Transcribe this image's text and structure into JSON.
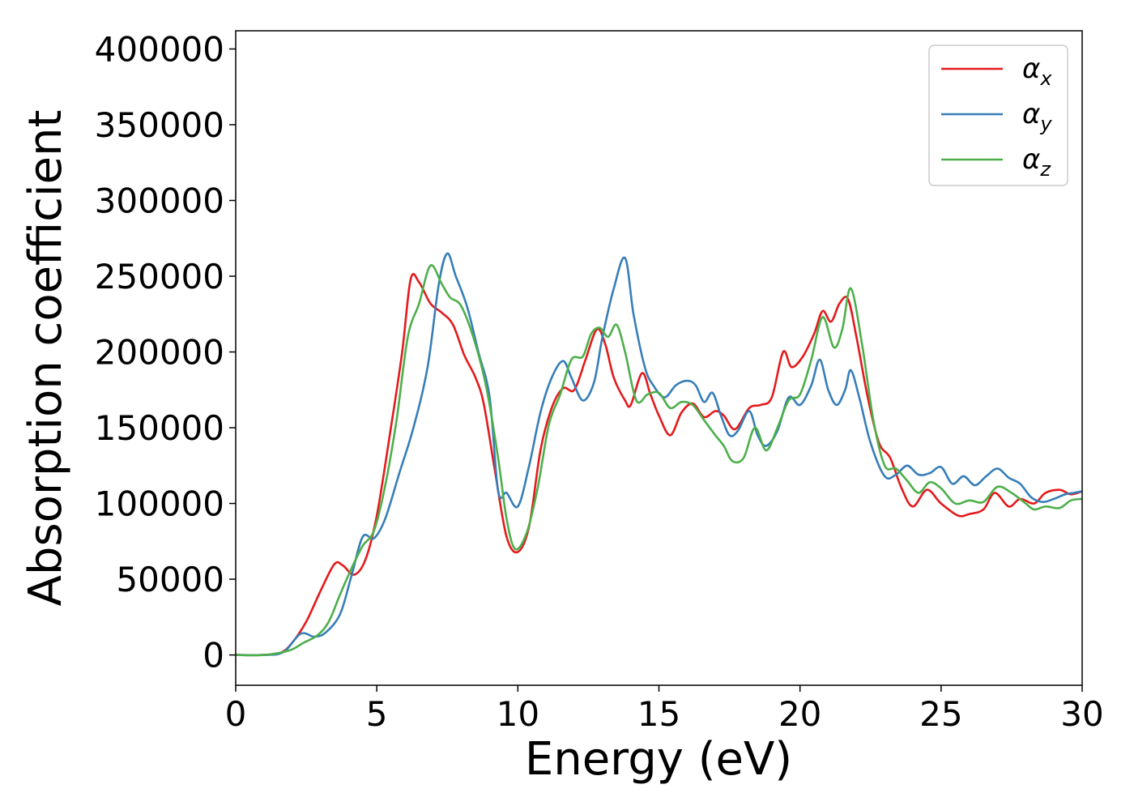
{
  "chart_data": {
    "type": "line",
    "xlabel": "Energy (eV)",
    "ylabel": "Absorption coefficient",
    "xlim": [
      0,
      30
    ],
    "ylim": [
      -20000,
      412000
    ],
    "xticks": [
      0,
      5,
      10,
      15,
      20,
      25,
      30
    ],
    "yticks": [
      0,
      50000,
      100000,
      150000,
      200000,
      250000,
      300000,
      350000,
      400000
    ],
    "xtick_labels": [
      "0",
      "5",
      "10",
      "15",
      "20",
      "25",
      "30"
    ],
    "ytick_labels": [
      "0",
      "50000",
      "100000",
      "150000",
      "200000",
      "250000",
      "300000",
      "350000",
      "400000"
    ],
    "grid": false,
    "legend": "top-right",
    "series": [
      {
        "name": "α",
        "subscript": "x",
        "color": "#e41a1c",
        "points": [
          [
            0,
            0
          ],
          [
            1,
            0
          ],
          [
            1.6,
            1500
          ],
          [
            2,
            8000
          ],
          [
            2.5,
            22000
          ],
          [
            3,
            42000
          ],
          [
            3.5,
            60000
          ],
          [
            3.8,
            59000
          ],
          [
            4.2,
            53000
          ],
          [
            4.6,
            63000
          ],
          [
            5,
            92000
          ],
          [
            5.5,
            150000
          ],
          [
            5.9,
            200000
          ],
          [
            6.2,
            248000
          ],
          [
            6.5,
            246000
          ],
          [
            6.9,
            232000
          ],
          [
            7.3,
            226000
          ],
          [
            7.7,
            218000
          ],
          [
            8.1,
            198000
          ],
          [
            8.5,
            183000
          ],
          [
            8.8,
            165000
          ],
          [
            9.2,
            120000
          ],
          [
            9.6,
            78000
          ],
          [
            10,
            68000
          ],
          [
            10.4,
            85000
          ],
          [
            10.8,
            135000
          ],
          [
            11.2,
            163000
          ],
          [
            11.6,
            176000
          ],
          [
            12,
            175000
          ],
          [
            12.4,
            195000
          ],
          [
            12.8,
            215000
          ],
          [
            13.1,
            205000
          ],
          [
            13.4,
            183000
          ],
          [
            13.8,
            168000
          ],
          [
            14,
            165000
          ],
          [
            14.4,
            186000
          ],
          [
            14.7,
            172000
          ],
          [
            15,
            158000
          ],
          [
            15.4,
            145000
          ],
          [
            15.8,
            160000
          ],
          [
            16.2,
            166000
          ],
          [
            16.6,
            157000
          ],
          [
            17,
            161000
          ],
          [
            17.3,
            158000
          ],
          [
            17.7,
            149000
          ],
          [
            18.2,
            163000
          ],
          [
            18.6,
            165000
          ],
          [
            19,
            170000
          ],
          [
            19.4,
            200000
          ],
          [
            19.7,
            190000
          ],
          [
            20.1,
            197000
          ],
          [
            20.5,
            212000
          ],
          [
            20.8,
            227000
          ],
          [
            21.1,
            220000
          ],
          [
            21.4,
            232000
          ],
          [
            21.7,
            235000
          ],
          [
            22,
            210000
          ],
          [
            22.4,
            170000
          ],
          [
            22.8,
            140000
          ],
          [
            23.2,
            130000
          ],
          [
            23.6,
            110000
          ],
          [
            24,
            98000
          ],
          [
            24.5,
            109000
          ],
          [
            25,
            100000
          ],
          [
            25.6,
            92000
          ],
          [
            26,
            93000
          ],
          [
            26.5,
            96000
          ],
          [
            26.9,
            107000
          ],
          [
            27.4,
            98000
          ],
          [
            27.8,
            103000
          ],
          [
            28.3,
            100000
          ],
          [
            28.7,
            107000
          ],
          [
            29.2,
            109000
          ],
          [
            29.6,
            106000
          ],
          [
            30,
            108000
          ]
        ]
      },
      {
        "name": "α",
        "subscript": "y",
        "color": "#377eb8",
        "points": [
          [
            0,
            0
          ],
          [
            1,
            0
          ],
          [
            1.7,
            2000
          ],
          [
            2.3,
            14000
          ],
          [
            2.8,
            12000
          ],
          [
            3.2,
            15000
          ],
          [
            3.7,
            27000
          ],
          [
            4.1,
            52000
          ],
          [
            4.5,
            78000
          ],
          [
            4.9,
            77000
          ],
          [
            5.3,
            90000
          ],
          [
            5.8,
            120000
          ],
          [
            6.3,
            150000
          ],
          [
            6.8,
            190000
          ],
          [
            7.2,
            245000
          ],
          [
            7.5,
            265000
          ],
          [
            7.8,
            250000
          ],
          [
            8.2,
            230000
          ],
          [
            8.6,
            200000
          ],
          [
            9,
            170000
          ],
          [
            9.3,
            108000
          ],
          [
            9.6,
            107000
          ],
          [
            10,
            98000
          ],
          [
            10.4,
            125000
          ],
          [
            10.8,
            160000
          ],
          [
            11.2,
            183000
          ],
          [
            11.6,
            194000
          ],
          [
            11.9,
            183000
          ],
          [
            12.3,
            168000
          ],
          [
            12.7,
            180000
          ],
          [
            13,
            210000
          ],
          [
            13.4,
            242000
          ],
          [
            13.8,
            262000
          ],
          [
            14.1,
            225000
          ],
          [
            14.5,
            190000
          ],
          [
            14.8,
            178000
          ],
          [
            15.2,
            170000
          ],
          [
            15.6,
            178000
          ],
          [
            16,
            181000
          ],
          [
            16.3,
            178000
          ],
          [
            16.6,
            167000
          ],
          [
            16.9,
            173000
          ],
          [
            17.2,
            158000
          ],
          [
            17.5,
            145000
          ],
          [
            17.8,
            148000
          ],
          [
            18.2,
            161000
          ],
          [
            18.5,
            145000
          ],
          [
            18.8,
            138000
          ],
          [
            19.2,
            148000
          ],
          [
            19.6,
            170000
          ],
          [
            20,
            165000
          ],
          [
            20.4,
            178000
          ],
          [
            20.7,
            195000
          ],
          [
            21,
            175000
          ],
          [
            21.3,
            165000
          ],
          [
            21.6,
            175000
          ],
          [
            21.8,
            188000
          ],
          [
            22.1,
            170000
          ],
          [
            22.5,
            140000
          ],
          [
            23,
            118000
          ],
          [
            23.4,
            119000
          ],
          [
            23.8,
            125000
          ],
          [
            24.2,
            119000
          ],
          [
            24.6,
            120000
          ],
          [
            25,
            124000
          ],
          [
            25.4,
            113000
          ],
          [
            25.8,
            118000
          ],
          [
            26.2,
            112000
          ],
          [
            26.6,
            118000
          ],
          [
            27,
            123000
          ],
          [
            27.4,
            117000
          ],
          [
            27.8,
            113000
          ],
          [
            28.2,
            104000
          ],
          [
            28.6,
            101000
          ],
          [
            29,
            103000
          ],
          [
            29.4,
            106000
          ],
          [
            29.7,
            107000
          ],
          [
            30,
            108000
          ]
        ]
      },
      {
        "name": "α",
        "subscript": "z",
        "color": "#4daf4a",
        "points": [
          [
            0,
            0
          ],
          [
            1,
            0
          ],
          [
            1.9,
            3000
          ],
          [
            2.4,
            8000
          ],
          [
            2.9,
            13000
          ],
          [
            3.3,
            22000
          ],
          [
            3.7,
            40000
          ],
          [
            4.1,
            57000
          ],
          [
            4.5,
            72000
          ],
          [
            4.9,
            82000
          ],
          [
            5.3,
            112000
          ],
          [
            5.7,
            155000
          ],
          [
            6.1,
            210000
          ],
          [
            6.5,
            232000
          ],
          [
            6.9,
            257000
          ],
          [
            7.3,
            245000
          ],
          [
            7.6,
            236000
          ],
          [
            8,
            230000
          ],
          [
            8.5,
            205000
          ],
          [
            8.9,
            175000
          ],
          [
            9.3,
            130000
          ],
          [
            9.6,
            90000
          ],
          [
            9.9,
            70000
          ],
          [
            10.3,
            80000
          ],
          [
            10.7,
            110000
          ],
          [
            11.1,
            152000
          ],
          [
            11.5,
            172000
          ],
          [
            11.9,
            195000
          ],
          [
            12.3,
            197000
          ],
          [
            12.6,
            212000
          ],
          [
            12.9,
            216000
          ],
          [
            13.2,
            210000
          ],
          [
            13.5,
            218000
          ],
          [
            13.8,
            200000
          ],
          [
            14.2,
            168000
          ],
          [
            14.6,
            172000
          ],
          [
            15,
            173000
          ],
          [
            15.4,
            163000
          ],
          [
            15.8,
            167000
          ],
          [
            16.2,
            165000
          ],
          [
            16.6,
            155000
          ],
          [
            17,
            145000
          ],
          [
            17.3,
            138000
          ],
          [
            17.6,
            128000
          ],
          [
            18,
            130000
          ],
          [
            18.4,
            150000
          ],
          [
            18.8,
            135000
          ],
          [
            19.2,
            150000
          ],
          [
            19.6,
            168000
          ],
          [
            20,
            172000
          ],
          [
            20.4,
            195000
          ],
          [
            20.8,
            223000
          ],
          [
            21.2,
            203000
          ],
          [
            21.5,
            215000
          ],
          [
            21.8,
            242000
          ],
          [
            22.2,
            205000
          ],
          [
            22.6,
            155000
          ],
          [
            23,
            125000
          ],
          [
            23.4,
            123000
          ],
          [
            23.8,
            115000
          ],
          [
            24.2,
            107000
          ],
          [
            24.6,
            114000
          ],
          [
            25,
            110000
          ],
          [
            25.5,
            100000
          ],
          [
            26,
            102000
          ],
          [
            26.5,
            101000
          ],
          [
            27,
            111000
          ],
          [
            27.5,
            107000
          ],
          [
            28,
            100000
          ],
          [
            28.3,
            96000
          ],
          [
            28.7,
            98000
          ],
          [
            29.2,
            97000
          ],
          [
            29.6,
            102000
          ],
          [
            30,
            103000
          ]
        ]
      }
    ]
  }
}
